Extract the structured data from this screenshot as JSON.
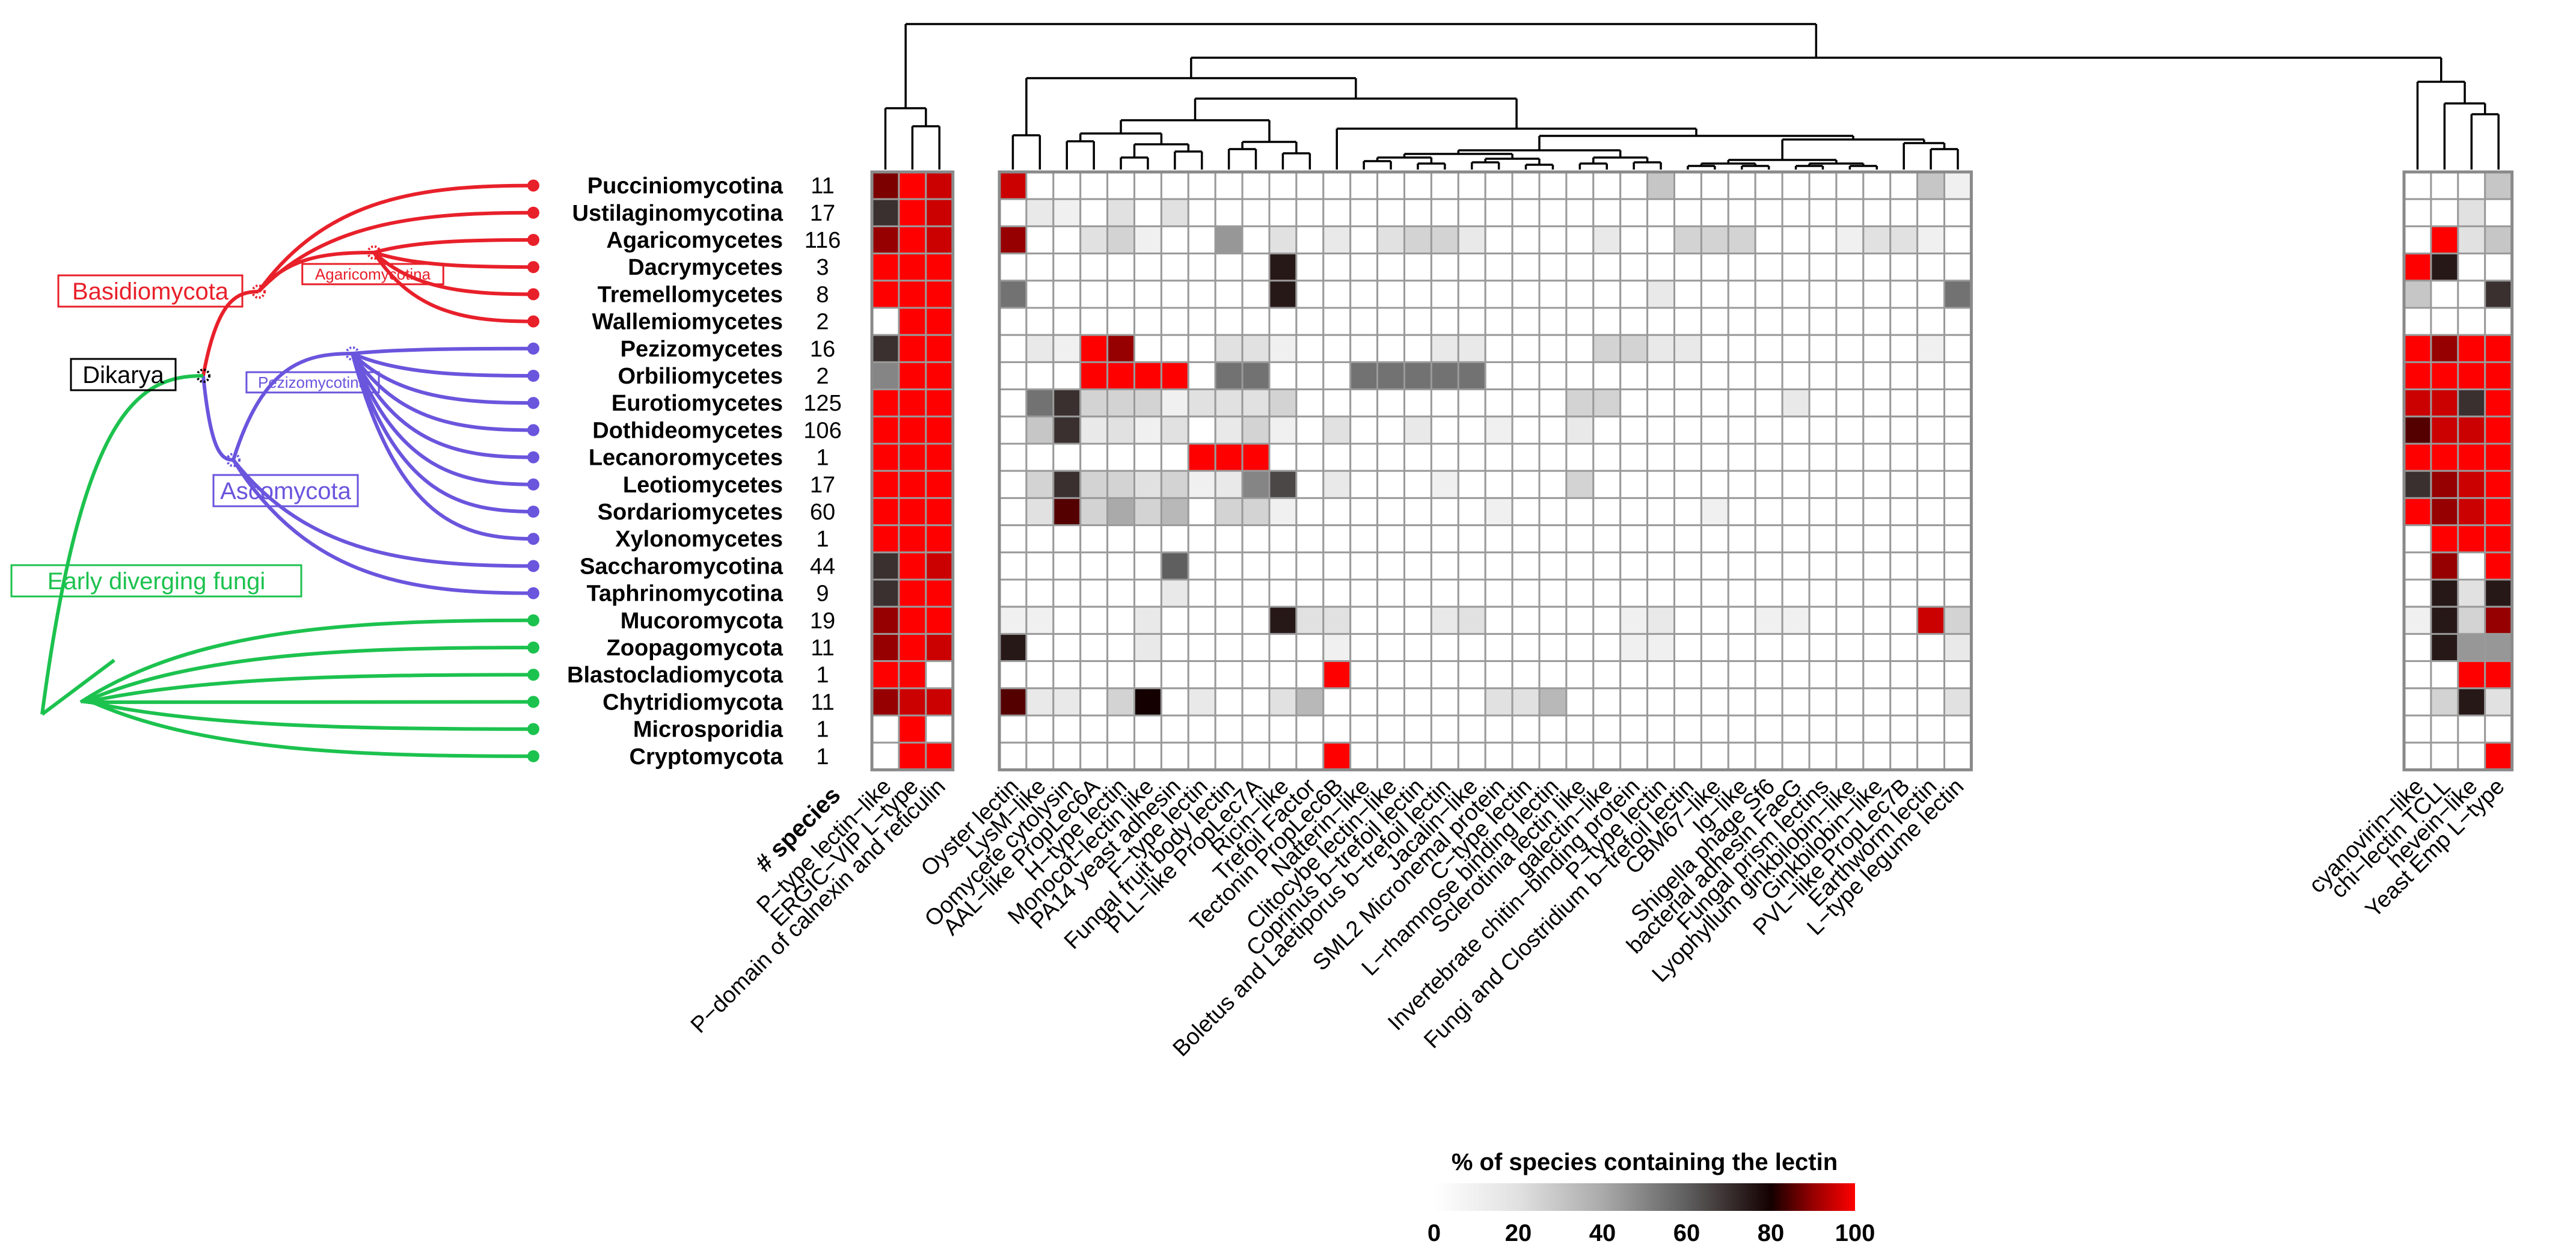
{
  "chart_data": {
    "type": "heatmap",
    "colorbar": {
      "title": "% of species containing the lectin",
      "ticks": [
        "0",
        "20",
        "40",
        "60",
        "80",
        "100"
      ],
      "range": [
        0,
        100
      ]
    },
    "species_header": "# species",
    "rows": [
      {
        "name": "Pucciniomycotina",
        "species": "11",
        "clade": "Basidiomycota"
      },
      {
        "name": "Ustilaginomycotina",
        "species": "17",
        "clade": "Basidiomycota"
      },
      {
        "name": "Agaricomycetes",
        "species": "116",
        "clade": "Basidiomycota"
      },
      {
        "name": "Dacrymycetes",
        "species": "3",
        "clade": "Basidiomycota"
      },
      {
        "name": "Tremellomycetes",
        "species": "8",
        "clade": "Basidiomycota"
      },
      {
        "name": "Wallemiomycetes",
        "species": "2",
        "clade": "Basidiomycota"
      },
      {
        "name": "Pezizomycetes",
        "species": "16",
        "clade": "Ascomycota"
      },
      {
        "name": "Orbiliomycetes",
        "species": "2",
        "clade": "Ascomycota"
      },
      {
        "name": "Eurotiomycetes",
        "species": "125",
        "clade": "Ascomycota"
      },
      {
        "name": "Dothideomycetes",
        "species": "106",
        "clade": "Ascomycota"
      },
      {
        "name": "Lecanoromycetes",
        "species": "1",
        "clade": "Ascomycota"
      },
      {
        "name": "Leotiomycetes",
        "species": "17",
        "clade": "Ascomycota"
      },
      {
        "name": "Sordariomycetes",
        "species": "60",
        "clade": "Ascomycota"
      },
      {
        "name": "Xylonomycetes",
        "species": "1",
        "clade": "Ascomycota"
      },
      {
        "name": "Saccharomycotina",
        "species": "44",
        "clade": "Ascomycota"
      },
      {
        "name": "Taphrinomycotina",
        "species": "9",
        "clade": "Ascomycota"
      },
      {
        "name": "Mucoromycota",
        "species": "19",
        "clade": "Early diverging fungi"
      },
      {
        "name": "Zoopagomycota",
        "species": "11",
        "clade": "Early diverging fungi"
      },
      {
        "name": "Blastocladiomycota",
        "species": "1",
        "clade": "Early diverging fungi"
      },
      {
        "name": "Chytridiomycota",
        "species": "11",
        "clade": "Early diverging fungi"
      },
      {
        "name": "Microsporidia",
        "species": "1",
        "clade": "Early diverging fungi"
      },
      {
        "name": "Cryptomycota",
        "species": "1",
        "clade": "Early diverging fungi"
      }
    ],
    "columns": [
      "P−type lectin−like",
      "ERGIC−VIP L−type",
      "P−domain of calnexin and reticulin",
      "Oyster lectin",
      "LysM−like",
      "Oomycete cytolysin",
      "AAL−like PropLec6A",
      "H−type lectin",
      "Monocot−lectin like",
      "PA14 yeast adhesin",
      "F−type lectin",
      "Fungal fruit body lectin",
      "PLL−like PropLec7A",
      "Ricin−like",
      "Trefoil Factor",
      "Tectonin PropLec6B",
      "Natterin−like",
      "Clitocybe lectin−like",
      "Coprinus b−trefoil lectin",
      "Boletus and Laetiporus b−trefoil lectin",
      "Jacalin−like",
      "SML2 Micronemal protein",
      "C−type lectin",
      "L−rhamnose binding lectin",
      "Sclerotinia lectin like",
      "galectin−like",
      "Invertebrate chitin−binding protein",
      "P−type lectin",
      "Fungi and Clostridium b−trefoil lectin",
      "CBM67−like",
      "Ig−like",
      "Shigella phage Sf6",
      "bacterial adhesin FaeG",
      "Fungal prism lectins",
      "Lyophyllum ginkbilobin−like",
      "Ginkbilobin−like",
      "PVL−like PropLec7B",
      "Earthworm lectin",
      "L−type legume lectin",
      "cyanovirin−like",
      "chi−lectin TCLL",
      "hevein−like",
      "Yeast Emp L−type"
    ],
    "blocks": [
      3,
      36,
      4
    ],
    "values": [
      [
        88,
        100,
        95,
        95,
        0,
        0,
        0,
        0,
        0,
        0,
        0,
        0,
        0,
        0,
        0,
        0,
        0,
        0,
        0,
        0,
        0,
        0,
        0,
        0,
        0,
        0,
        0,
        30,
        0,
        0,
        0,
        0,
        0,
        0,
        0,
        0,
        0,
        30,
        10,
        0,
        0,
        0,
        30
      ],
      [
        70,
        100,
        95,
        0,
        15,
        10,
        0,
        20,
        0,
        20,
        0,
        0,
        0,
        0,
        0,
        0,
        0,
        0,
        0,
        0,
        0,
        0,
        0,
        0,
        0,
        0,
        0,
        0,
        0,
        0,
        0,
        0,
        0,
        0,
        0,
        0,
        0,
        0,
        0,
        0,
        0,
        20,
        0
      ],
      [
        90,
        100,
        95,
        90,
        0,
        0,
        20,
        25,
        10,
        0,
        0,
        45,
        0,
        20,
        0,
        15,
        0,
        20,
        25,
        25,
        15,
        0,
        0,
        0,
        0,
        15,
        0,
        0,
        25,
        25,
        25,
        0,
        0,
        0,
        10,
        20,
        20,
        10,
        0,
        0,
        100,
        20,
        30
      ],
      [
        100,
        100,
        100,
        0,
        0,
        0,
        0,
        0,
        0,
        0,
        0,
        0,
        0,
        75,
        0,
        0,
        0,
        0,
        0,
        0,
        0,
        0,
        0,
        0,
        0,
        0,
        0,
        0,
        0,
        0,
        0,
        0,
        0,
        0,
        0,
        0,
        0,
        0,
        0,
        100,
        75,
        0,
        0
      ],
      [
        100,
        100,
        100,
        55,
        0,
        0,
        0,
        0,
        0,
        0,
        0,
        0,
        0,
        75,
        0,
        0,
        0,
        0,
        0,
        0,
        0,
        0,
        0,
        0,
        0,
        0,
        0,
        15,
        0,
        0,
        0,
        0,
        0,
        0,
        0,
        0,
        0,
        0,
        55,
        30,
        0,
        0,
        70
      ],
      [
        0,
        100,
        100,
        0,
        0,
        0,
        0,
        0,
        0,
        0,
        0,
        0,
        0,
        0,
        0,
        0,
        0,
        0,
        0,
        0,
        0,
        0,
        0,
        0,
        0,
        0,
        0,
        0,
        0,
        0,
        0,
        0,
        0,
        0,
        0,
        0,
        0,
        0,
        0,
        0,
        0,
        0,
        0
      ],
      [
        70,
        100,
        100,
        0,
        15,
        10,
        100,
        90,
        0,
        0,
        0,
        20,
        20,
        10,
        0,
        0,
        0,
        0,
        0,
        15,
        15,
        0,
        0,
        0,
        0,
        25,
        25,
        15,
        15,
        0,
        0,
        0,
        0,
        0,
        0,
        0,
        0,
        10,
        0,
        100,
        90,
        100,
        100
      ],
      [
        50,
        100,
        100,
        0,
        0,
        0,
        100,
        100,
        100,
        100,
        0,
        55,
        55,
        0,
        0,
        0,
        55,
        55,
        55,
        55,
        55,
        0,
        0,
        0,
        0,
        0,
        0,
        0,
        0,
        0,
        0,
        0,
        0,
        0,
        0,
        0,
        0,
        0,
        0,
        100,
        100,
        100,
        100
      ],
      [
        100,
        100,
        100,
        0,
        55,
        70,
        25,
        25,
        25,
        10,
        20,
        20,
        20,
        25,
        0,
        0,
        0,
        0,
        0,
        0,
        0,
        0,
        0,
        0,
        25,
        25,
        0,
        0,
        0,
        0,
        0,
        0,
        15,
        0,
        0,
        0,
        0,
        0,
        0,
        95,
        95,
        70,
        100
      ],
      [
        100,
        100,
        100,
        0,
        30,
        70,
        15,
        20,
        10,
        20,
        0,
        15,
        25,
        10,
        0,
        20,
        0,
        0,
        15,
        0,
        0,
        10,
        0,
        0,
        15,
        0,
        0,
        0,
        0,
        0,
        0,
        0,
        0,
        0,
        0,
        0,
        0,
        0,
        0,
        85,
        95,
        95,
        100
      ],
      [
        100,
        100,
        100,
        0,
        0,
        0,
        0,
        0,
        0,
        0,
        100,
        100,
        100,
        0,
        0,
        0,
        0,
        0,
        0,
        0,
        0,
        0,
        0,
        0,
        0,
        0,
        0,
        0,
        0,
        0,
        0,
        0,
        0,
        0,
        0,
        0,
        0,
        0,
        0,
        100,
        100,
        100,
        100
      ],
      [
        100,
        100,
        100,
        0,
        25,
        70,
        25,
        25,
        20,
        25,
        10,
        15,
        50,
        65,
        0,
        15,
        0,
        0,
        0,
        10,
        0,
        0,
        0,
        0,
        25,
        0,
        0,
        0,
        0,
        0,
        0,
        0,
        0,
        0,
        0,
        0,
        0,
        0,
        0,
        70,
        90,
        95,
        100
      ],
      [
        100,
        100,
        100,
        0,
        20,
        85,
        25,
        40,
        25,
        35,
        0,
        25,
        25,
        10,
        0,
        0,
        0,
        0,
        0,
        0,
        0,
        10,
        0,
        0,
        0,
        0,
        0,
        0,
        0,
        10,
        0,
        0,
        0,
        0,
        0,
        0,
        0,
        0,
        0,
        100,
        90,
        95,
        100
      ],
      [
        100,
        100,
        100,
        0,
        0,
        0,
        0,
        0,
        0,
        0,
        0,
        0,
        0,
        0,
        0,
        0,
        0,
        0,
        0,
        0,
        0,
        0,
        0,
        0,
        0,
        0,
        0,
        0,
        0,
        0,
        0,
        0,
        0,
        0,
        0,
        0,
        0,
        0,
        0,
        0,
        100,
        100,
        100
      ],
      [
        70,
        100,
        95,
        0,
        0,
        0,
        0,
        0,
        0,
        60,
        0,
        0,
        0,
        0,
        0,
        0,
        0,
        0,
        0,
        0,
        0,
        0,
        0,
        0,
        0,
        0,
        0,
        0,
        0,
        0,
        0,
        0,
        0,
        0,
        0,
        0,
        0,
        0,
        0,
        0,
        90,
        0,
        100
      ],
      [
        70,
        100,
        100,
        0,
        0,
        0,
        0,
        0,
        0,
        15,
        0,
        0,
        0,
        0,
        0,
        0,
        0,
        0,
        0,
        0,
        0,
        0,
        0,
        0,
        0,
        0,
        0,
        0,
        0,
        0,
        0,
        0,
        0,
        0,
        0,
        0,
        0,
        0,
        0,
        0,
        75,
        20,
        75
      ],
      [
        90,
        100,
        100,
        10,
        10,
        0,
        0,
        0,
        15,
        0,
        0,
        0,
        0,
        75,
        20,
        20,
        0,
        0,
        0,
        15,
        20,
        0,
        0,
        0,
        0,
        0,
        10,
        15,
        0,
        0,
        0,
        10,
        10,
        0,
        0,
        0,
        0,
        95,
        25,
        10,
        75,
        25,
        90
      ],
      [
        90,
        100,
        95,
        75,
        0,
        0,
        0,
        0,
        15,
        0,
        0,
        0,
        0,
        0,
        0,
        10,
        0,
        0,
        0,
        0,
        0,
        0,
        0,
        0,
        0,
        0,
        10,
        10,
        0,
        0,
        0,
        0,
        0,
        0,
        0,
        0,
        0,
        0,
        15,
        0,
        75,
        45,
        45
      ],
      [
        100,
        100,
        0,
        0,
        0,
        0,
        0,
        0,
        0,
        0,
        0,
        0,
        0,
        0,
        0,
        100,
        0,
        0,
        0,
        0,
        0,
        0,
        0,
        0,
        0,
        0,
        0,
        0,
        0,
        0,
        0,
        0,
        0,
        0,
        0,
        0,
        0,
        0,
        0,
        0,
        0,
        100,
        100
      ],
      [
        90,
        95,
        95,
        85,
        15,
        15,
        0,
        25,
        80,
        0,
        15,
        0,
        0,
        20,
        35,
        0,
        0,
        0,
        0,
        0,
        0,
        20,
        20,
        35,
        0,
        0,
        0,
        0,
        0,
        0,
        0,
        0,
        0,
        0,
        0,
        0,
        0,
        0,
        20,
        0,
        25,
        75,
        20
      ],
      [
        0,
        100,
        0,
        0,
        0,
        0,
        0,
        0,
        0,
        0,
        0,
        0,
        0,
        0,
        0,
        0,
        0,
        0,
        0,
        0,
        0,
        0,
        0,
        0,
        0,
        0,
        0,
        0,
        0,
        0,
        0,
        0,
        0,
        0,
        0,
        0,
        0,
        0,
        0,
        0,
        0,
        0,
        0
      ],
      [
        0,
        100,
        100,
        0,
        0,
        0,
        0,
        0,
        0,
        0,
        0,
        0,
        0,
        0,
        0,
        100,
        0,
        0,
        0,
        0,
        0,
        0,
        0,
        0,
        0,
        0,
        0,
        0,
        0,
        0,
        0,
        0,
        0,
        0,
        0,
        0,
        0,
        0,
        0,
        0,
        0,
        0,
        100
      ]
    ],
    "tree_labels": {
      "basidio": "Basidiomycota",
      "agarico": "Agaricomycotina",
      "dikarya": "Dikarya",
      "pezizo": "Pezizomycotina",
      "asco": "Ascomycota",
      "early": "Early diverging fungi"
    },
    "colors": {
      "basidio": "#e8202a",
      "asco": "#6a55dd",
      "early": "#1cc24e",
      "grid": "#9a9a9a"
    }
  }
}
